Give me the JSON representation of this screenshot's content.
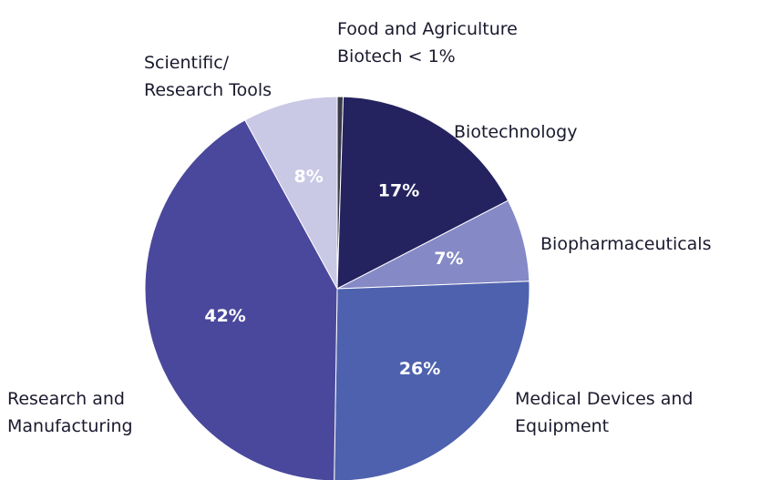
{
  "chart_data": {
    "type": "pie",
    "categories": [
      "Food and Agriculture\nBiotech < 1%",
      "Biotechnology",
      "Biopharmaceuticals",
      "Medical Devices and\nEquipment",
      "Research and\nManufacturing",
      "Scientific/\nResearch Tools"
    ],
    "values": [
      0.5,
      17,
      7,
      26,
      42,
      8
    ],
    "value_labels": [
      null,
      "17%",
      "7%",
      "26%",
      "42%",
      "8%"
    ],
    "colors": [
      "#3a3a4a",
      "#24235f",
      "#8589c6",
      "#4e61ae",
      "#4a489c",
      "#c9c8e5"
    ]
  }
}
